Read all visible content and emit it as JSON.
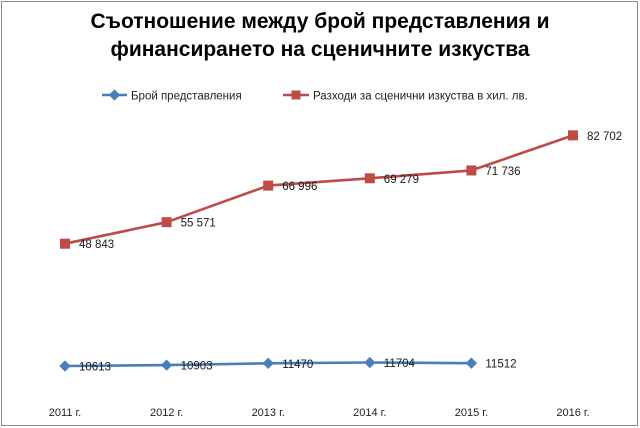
{
  "chart_data": {
    "type": "line",
    "title_lines": [
      "Съотношение между брой представления и",
      "финансирането на сценичните изкуства"
    ],
    "categories": [
      "2011 г.",
      "2012 г.",
      "2013 г.",
      "2014 г.",
      "2015 г.",
      "2016 г."
    ],
    "series": [
      {
        "name": "Брой представления",
        "color": "#4a7ebb",
        "marker": "diamond",
        "values": [
          10613,
          10903,
          11470,
          11704,
          11512,
          null
        ],
        "labels": [
          "10613",
          "10903",
          "11470",
          "11704",
          "11512",
          ""
        ]
      },
      {
        "name": "Разходи за сценични изкуства в хил. лв.",
        "color": "#be4b48",
        "marker": "square",
        "values": [
          48843,
          55571,
          66996,
          69279,
          71736,
          82702
        ],
        "labels": [
          "48 843",
          "55 571",
          "66 996",
          "69 279",
          "71 736",
          "82 702"
        ]
      }
    ],
    "ylim": [
      0,
      100000
    ],
    "legend": "top",
    "grid": false
  }
}
